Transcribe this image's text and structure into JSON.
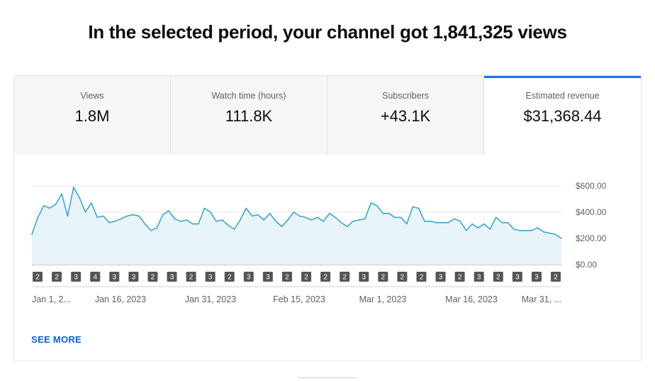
{
  "headline": "In the selected period, your channel got 1,841,325 views",
  "tabs": [
    {
      "label": "Views",
      "value": "1.8M",
      "active": false
    },
    {
      "label": "Watch time (hours)",
      "value": "111.8K",
      "active": false
    },
    {
      "label": "Subscribers",
      "value": "+43.1K",
      "active": false
    },
    {
      "label": "Estimated revenue",
      "value": "$31,368.44",
      "active": true
    }
  ],
  "see_more": "SEE MORE",
  "colors": {
    "accent": "#1a73e8",
    "line": "#3ea6c9",
    "fill": "#e8f4fa",
    "badge": "#555555",
    "link": "#065fd4"
  },
  "chart_data": {
    "type": "area",
    "title": "",
    "xlabel": "",
    "ylabel": "",
    "ylim": [
      0,
      600
    ],
    "yticks": [
      "$600.00",
      "$400.00",
      "$200.00",
      "$0.00"
    ],
    "xticks": [
      "Jan 1, 2...",
      "Jan 16, 2023",
      "Jan 31, 2023",
      "Feb 15, 2023",
      "Mar 1, 2023",
      "Mar 16, 2023",
      "Mar 31, ..."
    ],
    "grid": true,
    "series": [
      {
        "values": [
          230,
          360,
          450,
          430,
          460,
          540,
          370,
          590,
          510,
          400,
          470,
          360,
          370,
          320,
          330,
          350,
          370,
          380,
          370,
          310,
          260,
          280,
          380,
          410,
          350,
          330,
          340,
          310,
          310,
          430,
          400,
          330,
          340,
          300,
          270,
          340,
          430,
          370,
          380,
          340,
          390,
          330,
          290,
          340,
          400,
          370,
          360,
          340,
          360,
          330,
          390,
          360,
          320,
          290,
          330,
          340,
          350,
          470,
          450,
          390,
          390,
          360,
          360,
          310,
          440,
          430,
          330,
          330,
          320,
          320,
          320,
          350,
          330,
          260,
          310,
          280,
          310,
          270,
          360,
          320,
          320,
          270,
          260,
          260,
          260,
          280,
          250,
          240,
          230,
          200
        ]
      }
    ],
    "annotations": [
      "2",
      "2",
      "3",
      "4",
      "3",
      "3",
      "2",
      "3",
      "2",
      "3",
      "2",
      "3",
      "3",
      "2",
      "2",
      "2",
      "2",
      "3",
      "2",
      "2",
      "2",
      "3",
      "2",
      "3",
      "2",
      "3",
      "3",
      "2"
    ]
  }
}
